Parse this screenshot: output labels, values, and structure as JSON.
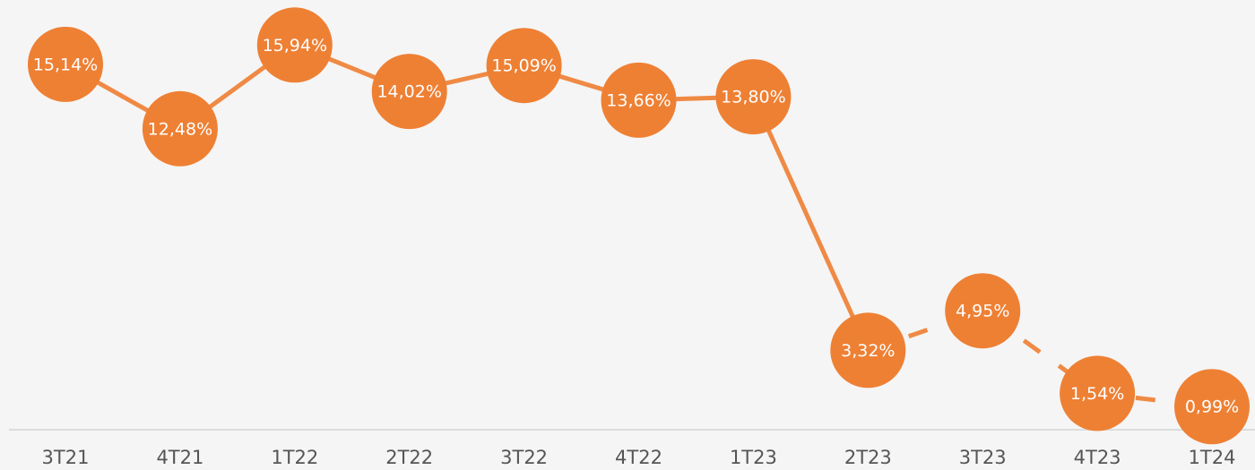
{
  "chart_data": {
    "type": "line",
    "categories": [
      "3T21",
      "4T21",
      "1T22",
      "2T22",
      "3T22",
      "4T22",
      "1T23",
      "2T23",
      "3T23",
      "4T23",
      "1T24"
    ],
    "values": [
      15.14,
      12.48,
      15.94,
      14.02,
      15.09,
      13.66,
      13.8,
      3.32,
      4.95,
      1.54,
      0.99
    ],
    "value_labels": [
      "15,14%",
      "12,48%",
      "15,94%",
      "14,02%",
      "15,09%",
      "13,66%",
      "13,80%",
      "3,32%",
      "4,95%",
      "1,54%",
      "0,99%"
    ],
    "color": "#ee8034",
    "line_color": "#ef8a45",
    "dashed_from": "2T23",
    "ylim": [
      0,
      17.8
    ]
  }
}
